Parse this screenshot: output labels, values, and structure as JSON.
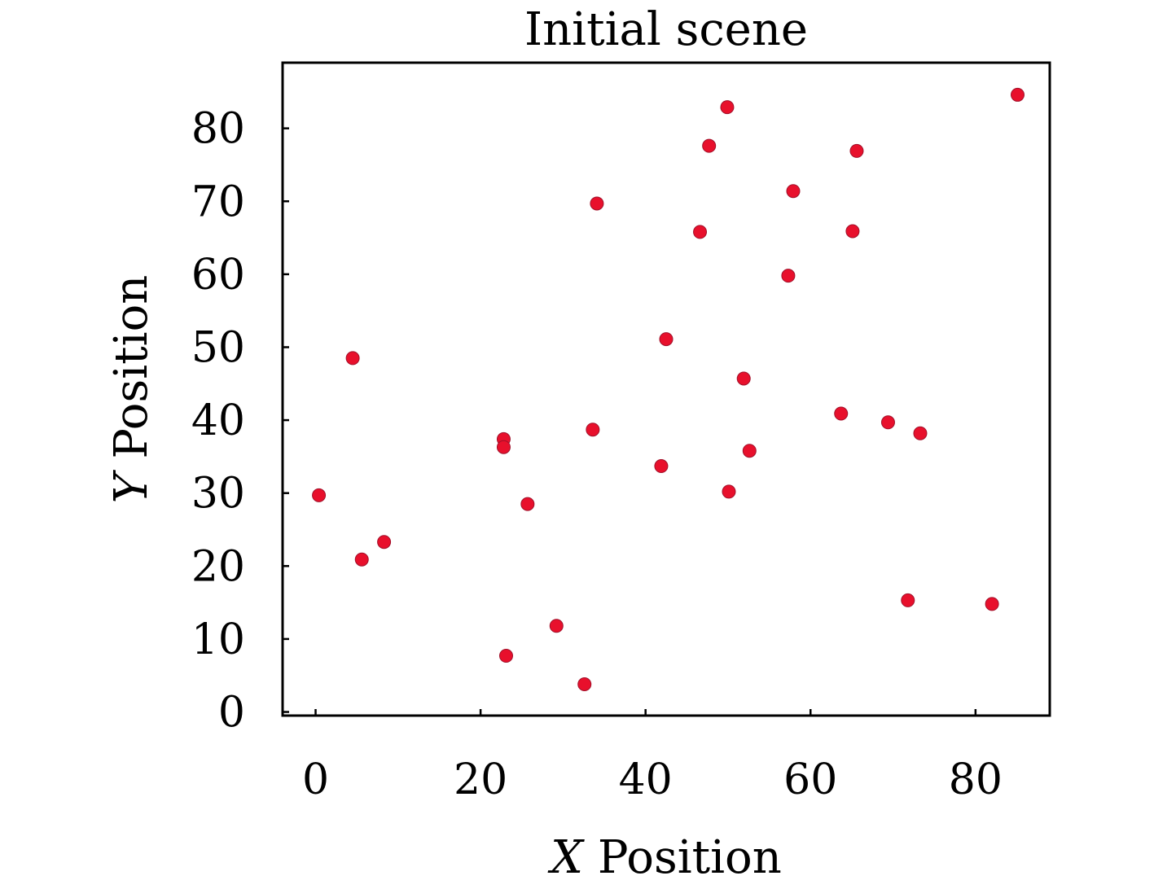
{
  "chart_data": {
    "type": "scatter",
    "title": "Initial scene",
    "xlabel": "X Position",
    "ylabel": "Y Position",
    "xlim": [
      -4,
      89
    ],
    "ylim": [
      -0.5,
      89
    ],
    "xticks": [
      0,
      20,
      40,
      60,
      80
    ],
    "yticks": [
      0,
      10,
      20,
      30,
      40,
      50,
      60,
      70,
      80
    ],
    "grid": false,
    "legend": "none",
    "point_color": "#e8102c",
    "points": [
      {
        "x": 0.4,
        "y": 29.7
      },
      {
        "x": 4.5,
        "y": 48.5
      },
      {
        "x": 5.6,
        "y": 20.9
      },
      {
        "x": 8.3,
        "y": 23.3
      },
      {
        "x": 22.8,
        "y": 37.4
      },
      {
        "x": 22.8,
        "y": 36.3
      },
      {
        "x": 23.1,
        "y": 7.7
      },
      {
        "x": 25.7,
        "y": 28.5
      },
      {
        "x": 29.2,
        "y": 11.8
      },
      {
        "x": 32.6,
        "y": 3.8
      },
      {
        "x": 33.6,
        "y": 38.7
      },
      {
        "x": 34.1,
        "y": 69.7
      },
      {
        "x": 41.9,
        "y": 33.7
      },
      {
        "x": 42.5,
        "y": 51.1
      },
      {
        "x": 46.6,
        "y": 65.8
      },
      {
        "x": 47.7,
        "y": 77.6
      },
      {
        "x": 49.9,
        "y": 82.9
      },
      {
        "x": 50.1,
        "y": 30.2
      },
      {
        "x": 51.9,
        "y": 45.7
      },
      {
        "x": 52.6,
        "y": 35.8
      },
      {
        "x": 57.3,
        "y": 59.8
      },
      {
        "x": 57.9,
        "y": 71.4
      },
      {
        "x": 63.7,
        "y": 40.9
      },
      {
        "x": 65.1,
        "y": 65.9
      },
      {
        "x": 65.6,
        "y": 76.9
      },
      {
        "x": 69.4,
        "y": 39.7
      },
      {
        "x": 71.8,
        "y": 15.3
      },
      {
        "x": 73.3,
        "y": 38.2
      },
      {
        "x": 82.0,
        "y": 14.8
      },
      {
        "x": 85.1,
        "y": 84.6
      }
    ]
  }
}
